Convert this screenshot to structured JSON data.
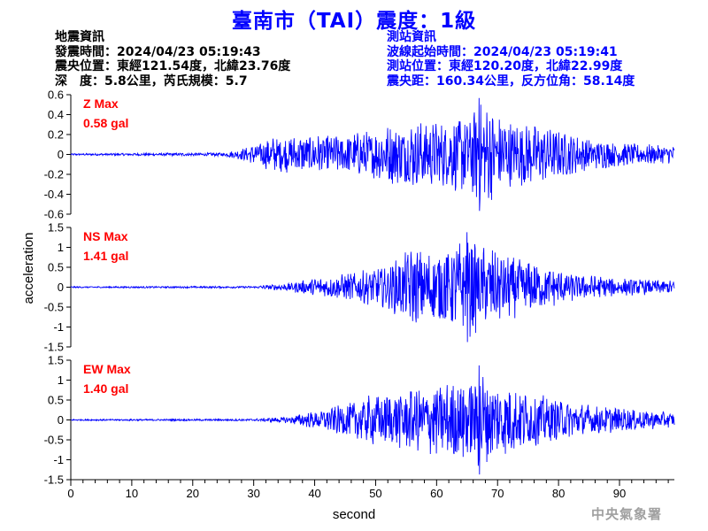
{
  "title": "臺南市（TAI）震度：1級",
  "quake_info": {
    "heading": "地震資訊",
    "origin_time": "發震時間：2024/04/23 05:19:43",
    "epicenter": "震央位置：東經121.54度，北緯23.76度",
    "depth_magnitude": "深　度：5.8公里，芮氏規模：5.7"
  },
  "station_info": {
    "heading": "測站資訊",
    "wave_start": "波線起始時間：2024/04/23 05:19:41",
    "station_location": "測站位置：東經120.20度，北緯22.99度",
    "distance_azimuth": "震央距：160.34公里，反方位角：58.14度"
  },
  "credit": "中央氣象署",
  "colors": {
    "trace": "#0000ff",
    "max_label": "#ff0000",
    "title": "#0000ff",
    "station_text": "#0000ff",
    "axis": "#000000"
  },
  "chart_data": {
    "type": "line",
    "xlabel": "second",
    "ylabel": "acceleration",
    "xlim": [
      0,
      99
    ],
    "x_ticks": [
      0,
      10,
      20,
      30,
      40,
      50,
      60,
      70,
      80,
      90
    ],
    "grid": false,
    "panels": [
      {
        "name": "Z",
        "max_label": "Z Max",
        "max_value": "0.58 gal",
        "ylim": [
          -0.6,
          0.6
        ],
        "y_ticks": [
          -0.6,
          -0.4,
          -0.2,
          0,
          0.2,
          0.4,
          0.6
        ],
        "envelope": {
          "t": [
            0,
            25,
            29,
            33,
            40,
            48,
            55,
            62,
            67,
            72,
            78,
            85,
            92,
            99
          ],
          "amp": [
            0.01,
            0.02,
            0.08,
            0.2,
            0.22,
            0.25,
            0.38,
            0.36,
            0.58,
            0.4,
            0.3,
            0.18,
            0.12,
            0.1
          ]
        }
      },
      {
        "name": "NS",
        "max_label": "NS Max",
        "max_value": "1.41 gal",
        "ylim": [
          -1.5,
          1.5
        ],
        "y_ticks": [
          -1.5,
          -1,
          -0.5,
          0,
          0.5,
          1,
          1.5
        ],
        "envelope": {
          "t": [
            0,
            30,
            35,
            40,
            46,
            52,
            56,
            60,
            65,
            70,
            76,
            82,
            90,
            99
          ],
          "amp": [
            0.02,
            0.03,
            0.1,
            0.25,
            0.4,
            0.6,
            1.1,
            1.0,
            1.41,
            1.0,
            0.7,
            0.4,
            0.25,
            0.18
          ]
        }
      },
      {
        "name": "EW",
        "max_label": "EW Max",
        "max_value": "1.40 gal",
        "ylim": [
          -1.5,
          1.5
        ],
        "y_ticks": [
          -1.5,
          -1,
          -0.5,
          0,
          0.5,
          1,
          1.5
        ],
        "envelope": {
          "t": [
            0,
            30,
            35,
            40,
            46,
            50,
            56,
            60,
            64,
            67,
            71,
            76,
            82,
            90,
            99
          ],
          "amp": [
            0.02,
            0.03,
            0.08,
            0.25,
            0.5,
            0.75,
            0.9,
            1.0,
            1.2,
            1.4,
            1.05,
            0.75,
            0.5,
            0.35,
            0.2
          ]
        }
      }
    ]
  }
}
